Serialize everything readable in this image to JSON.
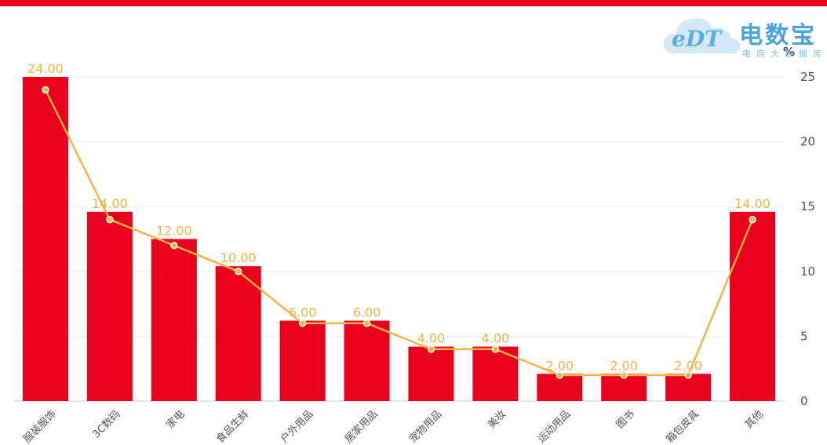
{
  "watermark": {
    "logo_text": "eDT",
    "brand": "电数宝",
    "subtitle": "电商大数据库"
  },
  "chart_data": {
    "type": "bar",
    "categories": [
      "服装服饰",
      "3C数码",
      "家电",
      "食品生鲜",
      "户外用品",
      "居家用品",
      "宠物用品",
      "美妆",
      "运动用品",
      "图书",
      "箱包皮具",
      "其他"
    ],
    "series": [
      {
        "type": "bar",
        "values": [
          25,
          14.6,
          12.5,
          10.4,
          6.2,
          6.2,
          4.2,
          4.2,
          2.1,
          2.1,
          2.1,
          14.6
        ],
        "color": "#e8001c"
      },
      {
        "type": "line",
        "values": [
          24,
          14,
          12,
          10,
          6,
          6,
          4,
          4,
          2,
          2,
          2,
          14
        ],
        "labels": [
          "24.00",
          "14.00",
          "12.00",
          "10.00",
          "6.00",
          "6.00",
          "4.00",
          "4.00",
          "2.00",
          "2.00",
          "2.00",
          "14.00"
        ],
        "color": "#f5b342"
      }
    ],
    "yaxis": {
      "position": "right",
      "unit": "%",
      "ticks": [
        0,
        5,
        10,
        15,
        20,
        25
      ],
      "ylim": [
        0,
        25
      ]
    },
    "grid": true
  }
}
